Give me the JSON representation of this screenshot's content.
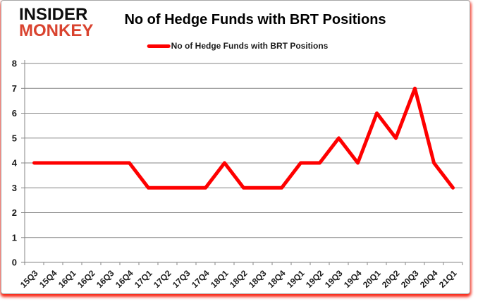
{
  "logo": {
    "line1": "INSIDER",
    "line2": "MONKEY",
    "line1_color": "#0d0d0d",
    "line2_color": "#d9432f"
  },
  "header": {
    "title": "No of Hedge Funds with BRT Positions"
  },
  "legend": {
    "label": "No of Hedge Funds with BRT Positions",
    "swatch_color": "#fe0000"
  },
  "chart_data": {
    "type": "line",
    "title": "No of Hedge Funds with BRT Positions",
    "categories": [
      "15Q3",
      "15Q4",
      "16Q1",
      "16Q2",
      "16Q3",
      "16Q4",
      "17Q1",
      "17Q2",
      "17Q3",
      "17Q4",
      "18Q1",
      "18Q2",
      "18Q3",
      "18Q4",
      "19Q1",
      "19Q2",
      "19Q3",
      "19Q4",
      "20Q1",
      "20Q2",
      "20Q3",
      "20Q4",
      "21Q1"
    ],
    "values": [
      4,
      4,
      4,
      4,
      4,
      4,
      3,
      3,
      3,
      3,
      4,
      3,
      3,
      3,
      4,
      4,
      5,
      4,
      6,
      5,
      7,
      4,
      3
    ],
    "series_name": "No of Hedge Funds with BRT Positions",
    "xlabel": "",
    "ylabel": "",
    "ylim": [
      0,
      8
    ],
    "yticks": [
      0,
      1,
      2,
      3,
      4,
      5,
      6,
      7,
      8
    ],
    "grid": true,
    "legend_position": "top",
    "line_color": "#fe0000",
    "grid_color": "#848484",
    "axis_color": "#848484"
  }
}
